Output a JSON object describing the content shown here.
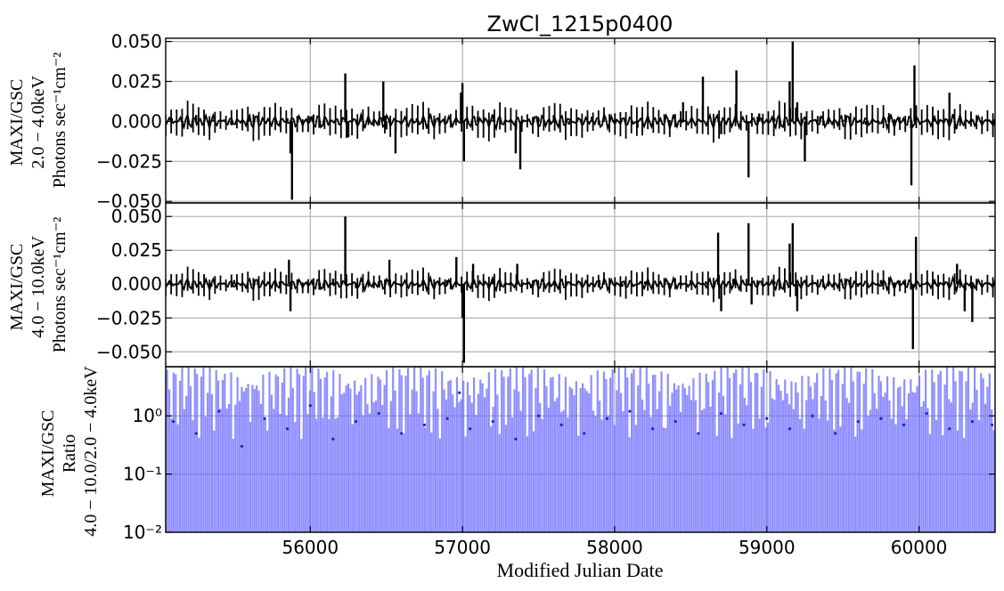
{
  "chart_data": [
    {
      "type": "line",
      "panel": "top",
      "title": "ZwCl_1215p0400",
      "ylabel_lines": [
        "MAXI/GSC",
        "2.0 − 4.0keV",
        "Photons sec⁻¹cm⁻²"
      ],
      "xlim": [
        55050,
        60500
      ],
      "ylim": [
        -0.051,
        0.052
      ],
      "yticks": [
        -0.05,
        -0.025,
        0.0,
        0.025,
        0.05
      ],
      "ytick_labels": [
        "−0.050",
        "−0.025",
        "0.000",
        "0.025",
        "0.050"
      ],
      "grid": true,
      "color": "#000000",
      "series": [
        {
          "x": [
            55090,
            55160,
            55250,
            55360,
            55480,
            55600,
            55720,
            55850,
            55870,
            55880,
            56000,
            56130,
            56230,
            56250,
            56330,
            56480,
            56500,
            56560,
            56700,
            56850,
            56990,
            57000,
            57010,
            57100,
            57200,
            57350,
            57380,
            57500,
            57600,
            57700,
            57850,
            58000,
            58150,
            58300,
            58450,
            58580,
            58700,
            58800,
            58880,
            58950,
            59050,
            59150,
            59170,
            59200,
            59250,
            59350,
            59500,
            59650,
            59800,
            59950,
            59970,
            60100,
            60200,
            60350,
            60500
          ],
          "y": [
            0.002,
            -0.003,
            0.004,
            0.001,
            -0.002,
            0.003,
            0.0,
            0.002,
            -0.02,
            -0.049,
            0.003,
            0.001,
            0.03,
            -0.01,
            0.002,
            0.025,
            -0.005,
            -0.02,
            0.002,
            -0.003,
            0.018,
            0.024,
            -0.025,
            0.003,
            0.001,
            -0.02,
            -0.03,
            0.002,
            0.004,
            -0.002,
            0.003,
            0.001,
            -0.004,
            0.002,
            0.012,
            0.028,
            -0.008,
            0.032,
            -0.035,
            0.005,
            0.002,
            0.025,
            0.05,
            0.012,
            -0.025,
            0.003,
            0.001,
            -0.002,
            0.003,
            -0.04,
            0.035,
            0.002,
            0.018,
            0.001,
            -0.003
          ]
        }
      ]
    },
    {
      "type": "line",
      "panel": "middle",
      "ylabel_lines": [
        "MAXI/GSC",
        "4.0 − 10.0keV",
        "Photons sec⁻¹cm⁻²"
      ],
      "xlim": [
        55050,
        60500
      ],
      "ylim": [
        -0.061,
        0.06
      ],
      "yticks": [
        -0.05,
        -0.025,
        0.0,
        0.025,
        0.05
      ],
      "ytick_labels": [
        "−0.050",
        "−0.025",
        "0.000",
        "0.025",
        "0.050"
      ],
      "grid": true,
      "color": "#000000",
      "series": [
        {
          "x": [
            55090,
            55200,
            55350,
            55500,
            55650,
            55800,
            55860,
            55870,
            56000,
            56150,
            56230,
            56300,
            56450,
            56520,
            56600,
            56750,
            56900,
            56960,
            57000,
            57010,
            57070,
            57200,
            57360,
            57450,
            57600,
            57750,
            57900,
            58050,
            58200,
            58350,
            58500,
            58600,
            58680,
            58700,
            58780,
            58880,
            58900,
            59050,
            59150,
            59170,
            59200,
            59300,
            59450,
            59600,
            59750,
            59900,
            59960,
            59980,
            60100,
            60250,
            60300,
            60350,
            60500
          ],
          "y": [
            0.001,
            0.002,
            -0.002,
            0.003,
            0.0,
            0.002,
            0.018,
            -0.02,
            0.001,
            0.004,
            0.05,
            -0.003,
            0.002,
            0.018,
            -0.002,
            0.001,
            0.003,
            0.02,
            -0.025,
            -0.058,
            0.015,
            0.002,
            0.015,
            -0.003,
            0.002,
            0.0,
            0.003,
            -0.002,
            0.002,
            0.001,
            0.003,
            0.002,
            0.038,
            -0.02,
            0.004,
            0.045,
            -0.015,
            0.002,
            0.03,
            0.045,
            -0.02,
            0.003,
            0.001,
            -0.002,
            0.003,
            0.002,
            -0.048,
            0.035,
            0.002,
            0.015,
            -0.02,
            -0.028,
            0.003
          ]
        }
      ]
    },
    {
      "type": "line",
      "panel": "bottom",
      "ylabel_lines": [
        "MAXI/GSC",
        "Ratio",
        "4.0 − 10.0/2.0 − 4.0keV"
      ],
      "xlabel": "Modified Julian Date",
      "yscale": "log",
      "xlim": [
        55050,
        60500
      ],
      "ylim": [
        0.01,
        7
      ],
      "yticks": [
        0.01,
        0.1,
        1
      ],
      "ytick_labels": [
        "10⁻²",
        "10⁻¹",
        "10⁰"
      ],
      "xticks": [
        56000,
        57000,
        58000,
        59000,
        60000
      ],
      "xtick_labels": [
        "56000",
        "57000",
        "58000",
        "59000",
        "60000"
      ],
      "grid": true,
      "color": "#0000ff",
      "series": [
        {
          "x": [
            55100,
            55250,
            55400,
            55550,
            55700,
            55850,
            56000,
            56150,
            56300,
            56450,
            56600,
            56750,
            56900,
            56980,
            57050,
            57200,
            57350,
            57500,
            57650,
            57800,
            57950,
            58100,
            58250,
            58400,
            58550,
            58700,
            58850,
            59000,
            59150,
            59300,
            59450,
            59600,
            59750,
            59900,
            60050,
            60200,
            60350,
            60480
          ],
          "y": [
            0.8,
            0.5,
            1.2,
            0.3,
            0.9,
            0.6,
            1.5,
            0.4,
            0.8,
            1.1,
            0.5,
            0.7,
            0.9,
            2.5,
            0.6,
            0.8,
            0.4,
            1.0,
            0.7,
            0.5,
            0.9,
            1.2,
            0.6,
            0.8,
            0.5,
            1.1,
            0.7,
            0.9,
            0.6,
            1.0,
            0.5,
            0.8,
            0.9,
            0.7,
            1.1,
            0.6,
            0.8,
            0.7
          ]
        }
      ]
    }
  ]
}
